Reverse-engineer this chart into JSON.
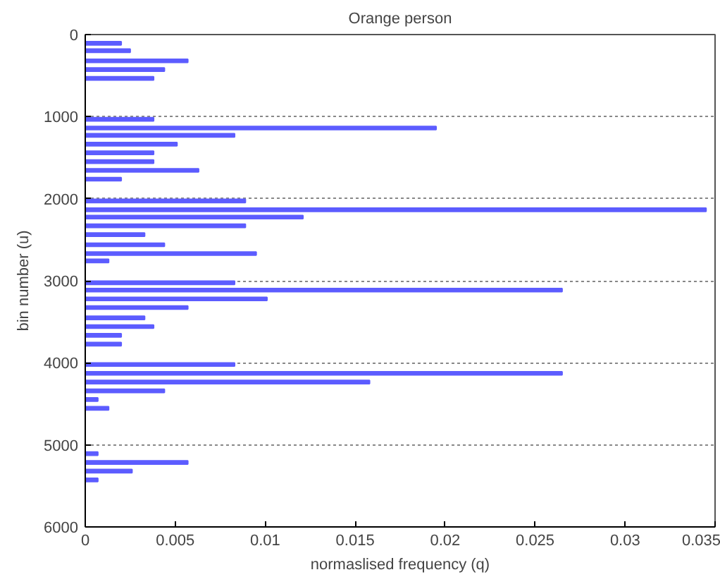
{
  "chart_data": {
    "type": "bar",
    "orientation": "horizontal",
    "title": "Orange person",
    "xlabel": "normaslised frequency (q)",
    "ylabel": "bin number (u)",
    "x": [
      107,
      196,
      320,
      427,
      534,
      1032,
      1139,
      1228,
      1335,
      1441,
      1548,
      1655,
      1762,
      2028,
      2135,
      2224,
      2331,
      2438,
      2562,
      2669,
      2758,
      3025,
      3114,
      3221,
      3327,
      3452,
      3559,
      3665,
      3772,
      4021,
      4128,
      4235,
      4342,
      4448,
      4555,
      5107,
      5214,
      5320,
      5427
    ],
    "series": [
      {
        "color": "#5c5cff",
        "values": [
          0.002,
          0.0025,
          0.0057,
          0.0044,
          0.0038,
          0.0038,
          0.0195,
          0.0083,
          0.0051,
          0.0038,
          0.0038,
          0.0063,
          0.002,
          0.0089,
          0.0345,
          0.0121,
          0.0089,
          0.0033,
          0.0044,
          0.0095,
          0.0013,
          0.0083,
          0.0265,
          0.0101,
          0.0057,
          0.0033,
          0.0038,
          0.002,
          0.002,
          0.0083,
          0.0265,
          0.0158,
          0.0044,
          0.0007,
          0.0013,
          0.0007,
          0.0057,
          0.0026,
          0.0007
        ]
      }
    ],
    "xlim": [
      0,
      0.035
    ],
    "xticks": [
      0,
      0.005,
      0.01,
      0.015,
      0.02,
      0.025,
      0.03,
      0.035
    ],
    "ylim": [
      6000,
      0
    ],
    "yticks": [
      0,
      1000,
      2000,
      3000,
      4000,
      5000,
      6000
    ],
    "grid": "y"
  }
}
